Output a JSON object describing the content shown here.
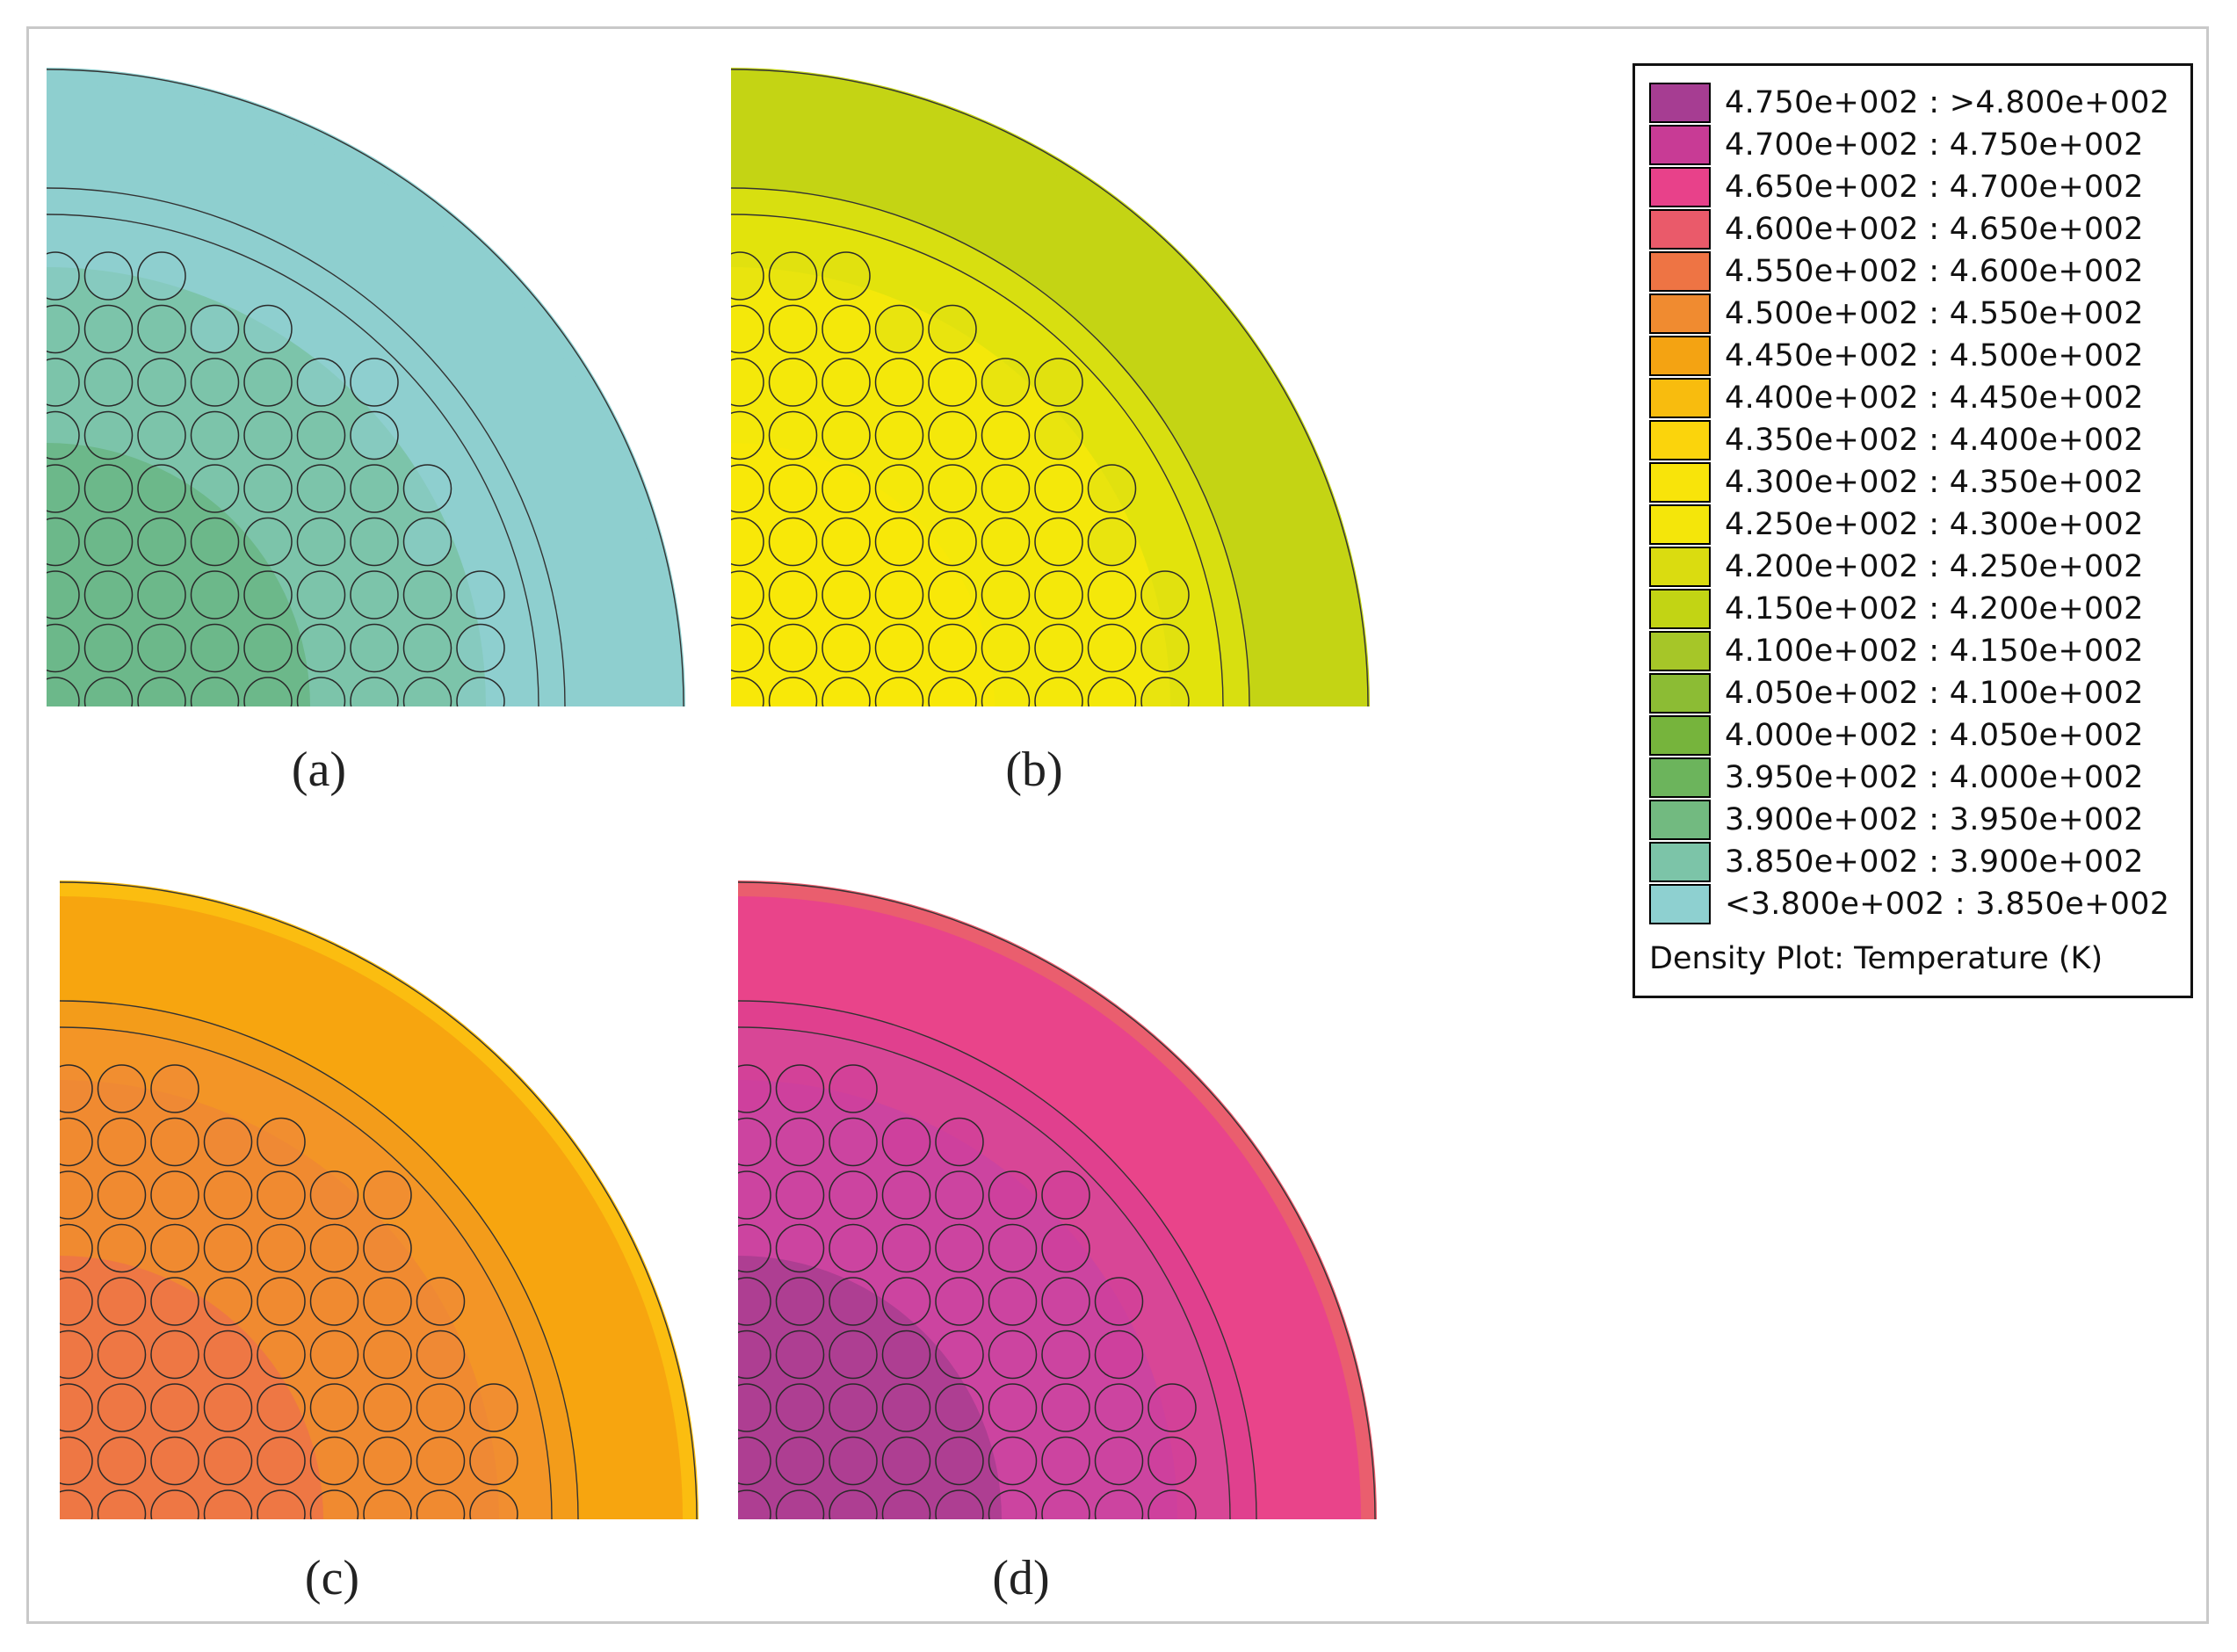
{
  "figure": {
    "panels": [
      {
        "caption": "(a)",
        "colors": {
          "shell_outer": "#8ecfcf",
          "shell_band": "#8ecfcf",
          "shell_inner": "#8ecfcf",
          "gap": "#8ecfcf",
          "bundle": "#7cc4aa",
          "hot": "#6cb88a",
          "edge_pin": "#8ecfcf"
        }
      },
      {
        "caption": "(b)",
        "colors": {
          "shell_outer": "#c4d414",
          "shell_band": "#c4d414",
          "shell_inner": "#d8df10",
          "gap": "#e2e30c",
          "bundle": "#f4e80a",
          "hot": "#f8e808",
          "edge_pin": "#e0e012"
        }
      },
      {
        "caption": "(c)",
        "colors": {
          "shell_outer": "#fbbd10",
          "shell_band": "#f7a50f",
          "shell_inner": "#f39c1a",
          "gap": "#f39526",
          "bundle": "#f08a30",
          "hot": "#ee7744",
          "edge_pin": "#ef8838"
        }
      },
      {
        "caption": "(d)",
        "colors": {
          "shell_outer": "#ea5e6e",
          "shell_band": "#e9448a",
          "shell_inner": "#e0408e",
          "gap": "#d84696",
          "bundle": "#cc44a0",
          "hot": "#ae3e92",
          "edge_pin": "#cf3e9a"
        }
      }
    ]
  },
  "legend": {
    "title": "Density Plot: Temperature (K)",
    "items": [
      {
        "label": "4.750e+002 : >4.800e+002",
        "color": "#a63d92"
      },
      {
        "label": "4.700e+002 : 4.750e+002",
        "color": "#c83b95"
      },
      {
        "label": "4.650e+002 : 4.700e+002",
        "color": "#e8418a"
      },
      {
        "label": "4.600e+002 : 4.650e+002",
        "color": "#ea5a6a"
      },
      {
        "label": "4.550e+002 : 4.600e+002",
        "color": "#ee7444"
      },
      {
        "label": "4.500e+002 : 4.550e+002",
        "color": "#f08b30"
      },
      {
        "label": "4.450e+002 : 4.500e+002",
        "color": "#f4a312"
      },
      {
        "label": "4.400e+002 : 4.450e+002",
        "color": "#f8bc0e"
      },
      {
        "label": "4.350e+002 : 4.400e+002",
        "color": "#fbd40c"
      },
      {
        "label": "4.300e+002 : 4.350e+002",
        "color": "#f8e40a"
      },
      {
        "label": "4.250e+002 : 4.300e+002",
        "color": "#f4e60a"
      },
      {
        "label": "4.200e+002 : 4.250e+002",
        "color": "#dadc10"
      },
      {
        "label": "4.150e+002 : 4.200e+002",
        "color": "#c2d414"
      },
      {
        "label": "4.100e+002 : 4.150e+002",
        "color": "#a6c628"
      },
      {
        "label": "4.050e+002 : 4.100e+002",
        "color": "#8cbc34"
      },
      {
        "label": "4.000e+002 : 4.050e+002",
        "color": "#76b43c"
      },
      {
        "label": "3.950e+002 : 4.000e+002",
        "color": "#6cb45c"
      },
      {
        "label": "3.900e+002 : 3.950e+002",
        "color": "#72ba80"
      },
      {
        "label": "3.850e+002 : 3.900e+002",
        "color": "#7cc4a8"
      },
      {
        "label": "<3.800e+002 : 3.850e+002",
        "color": "#8ed0d0"
      }
    ]
  }
}
